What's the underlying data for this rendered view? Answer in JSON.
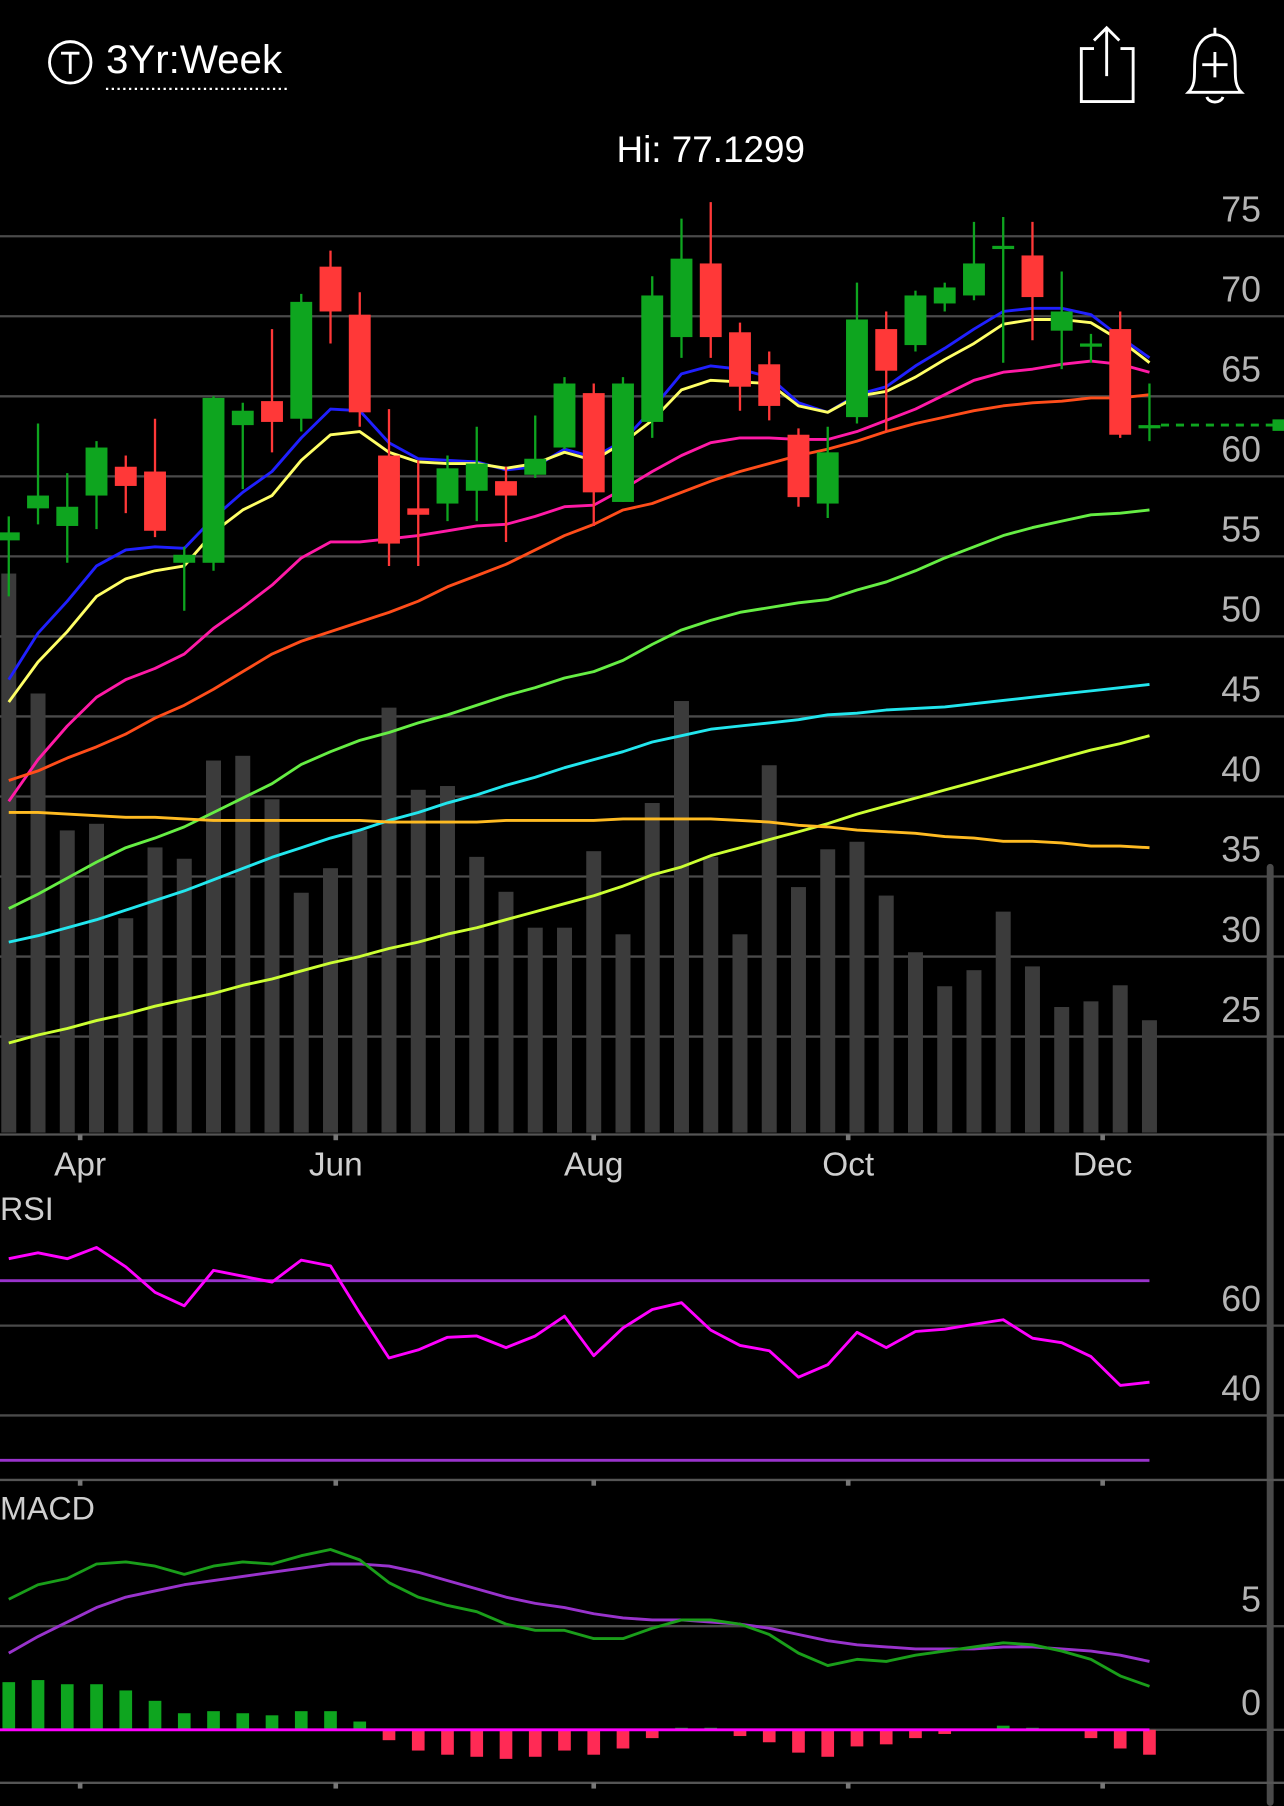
{
  "header": {
    "title": "3Yr:Week"
  },
  "chart_data": [
    {
      "type": "candlestick",
      "annotation": "Hi: 77.1299",
      "x": [
        0,
        1,
        2,
        3,
        4,
        5,
        6,
        7,
        8,
        9,
        10,
        11,
        12,
        13,
        14,
        15,
        16,
        17,
        18,
        19,
        20,
        21,
        22,
        23,
        24,
        25,
        26,
        27,
        28,
        29,
        30,
        31,
        32,
        33,
        34,
        35,
        36,
        37,
        38,
        39
      ],
      "xlim": [
        -0.3,
        43.6
      ],
      "xticks": [
        {
          "value": 2.44,
          "label": "Apr"
        },
        {
          "value": 11.18,
          "label": "Jun"
        },
        {
          "value": 20.0,
          "label": "Aug"
        },
        {
          "value": 28.7,
          "label": "Oct"
        },
        {
          "value": 37.4,
          "label": "Dec"
        }
      ],
      "open": [
        56,
        58,
        56.9,
        58.8,
        60.6,
        60.3,
        54.6,
        54.6,
        63.2,
        64.7,
        63.6,
        73.1,
        70.1,
        61.3,
        58,
        58.3,
        59.1,
        59.7,
        60.1,
        61.8,
        65.2,
        58.4,
        63.4,
        68.7,
        73.3,
        69,
        67,
        62.6,
        58.3,
        63.7,
        69.2,
        68.2,
        70.8,
        71.3,
        74.2,
        73.8,
        69.1,
        68.1,
        69.2,
        63
      ],
      "high": [
        57.5,
        63.3,
        60.2,
        62.2,
        61.3,
        63.6,
        55.6,
        65,
        64.6,
        69.2,
        71.4,
        74.1,
        71.5,
        64.2,
        61,
        61.3,
        63.1,
        60.6,
        63.8,
        66.2,
        65.8,
        66.2,
        72.5,
        76.1,
        77.1299,
        69.6,
        67.8,
        63,
        63.1,
        72.1,
        70.3,
        71.6,
        72.1,
        75.9,
        76.2,
        75.9,
        72.8,
        68.9,
        70.3,
        65.8
      ],
      "low": [
        52.5,
        57,
        54.6,
        56.7,
        57.7,
        56.2,
        51.6,
        54.1,
        59.2,
        61.5,
        62.8,
        68.3,
        63.1,
        54.4,
        54.4,
        57.2,
        57.2,
        55.9,
        59.9,
        61.7,
        56.9,
        58.4,
        62.4,
        67.4,
        67.4,
        64.1,
        63.5,
        58.1,
        57.4,
        63.3,
        62.8,
        67.8,
        70.3,
        71,
        67.1,
        68.5,
        66.7,
        67.1,
        62.4,
        62.2
      ],
      "close": [
        56.5,
        58.8,
        58.1,
        61.8,
        59.4,
        56.6,
        55.1,
        64.9,
        64.1,
        63.4,
        70.9,
        70.3,
        64,
        55.8,
        57.6,
        60.5,
        60.8,
        58.8,
        61.1,
        65.8,
        59,
        65.8,
        71.3,
        73.6,
        68.7,
        65.6,
        64.4,
        58.7,
        61.5,
        69.8,
        66.6,
        71.3,
        71.8,
        73.3,
        74.4,
        71.2,
        70.3,
        68.3,
        62.6,
        63.2
      ],
      "up_color": "#0ea51f",
      "down_color": "#ff3838",
      "volume": [
        59.2,
        46.5,
        32.0,
        32.7,
        22.7,
        30.2,
        29.0,
        39.4,
        39.9,
        35.3,
        25.4,
        28.0,
        32.0,
        45.0,
        36.3,
        36.7,
        29.2,
        25.5,
        21.7,
        21.7,
        29.8,
        21.0,
        34.9,
        45.7,
        29.2,
        21.0,
        38.9,
        26.0,
        30.0,
        30.8,
        25.1,
        19.1,
        15.5,
        17.2,
        23.4,
        17.6,
        13.3,
        13.9,
        15.6,
        11.9
      ],
      "volume_ylim": [
        0,
        100
      ],
      "volume_color": "#3b3b3b",
      "moving_averages": [
        {
          "color": "#2020ff",
          "values": [
            47.3,
            50.2,
            52.2,
            54.4,
            55.4,
            55.6,
            55.5,
            57.4,
            59,
            60.3,
            62.4,
            64.2,
            64.1,
            62.1,
            61.1,
            61,
            60.9,
            60.4,
            60.6,
            61.7,
            61.2,
            62.2,
            64.2,
            66.4,
            66.9,
            66.7,
            66.2,
            64.6,
            64,
            65.1,
            65.6,
            66.9,
            68,
            69.2,
            70.3,
            70.5,
            70.5,
            70.1,
            68.7,
            67.4
          ]
        },
        {
          "color": "#ffff66",
          "values": [
            45.9,
            48.4,
            50.3,
            52.5,
            53.6,
            54.1,
            54.4,
            56.5,
            57.9,
            58.8,
            61,
            62.6,
            62.8,
            61.5,
            60.9,
            60.8,
            60.8,
            60.5,
            60.8,
            61.5,
            61,
            62.1,
            63.5,
            65.4,
            66,
            65.9,
            65.8,
            64.4,
            64,
            65,
            65.3,
            66.2,
            67.3,
            68.3,
            69.5,
            69.8,
            69.8,
            69.6,
            68.5,
            67.1
          ]
        },
        {
          "color": "#ff1aa6",
          "values": [
            39.7,
            42.3,
            44.4,
            46.2,
            47.3,
            48,
            48.9,
            50.5,
            51.8,
            53.2,
            54.9,
            55.9,
            55.9,
            56.1,
            56.3,
            56.6,
            56.9,
            57,
            57.5,
            58.1,
            58.2,
            59.2,
            60.3,
            61.3,
            62.1,
            62.4,
            62.4,
            62.3,
            62.3,
            62.8,
            63.5,
            64.2,
            65.1,
            66,
            66.5,
            66.7,
            67,
            67.2,
            67,
            66.5
          ]
        },
        {
          "color": "#ff4d1a",
          "values": [
            41,
            41.6,
            42.4,
            43.1,
            43.9,
            44.9,
            45.7,
            46.7,
            47.8,
            48.9,
            49.7,
            50.3,
            50.9,
            51.5,
            52.2,
            53.1,
            53.8,
            54.5,
            55.4,
            56.3,
            57,
            57.9,
            58.3,
            59,
            59.7,
            60.3,
            60.8,
            61.3,
            61.7,
            62.2,
            62.8,
            63.3,
            63.7,
            64.1,
            64.4,
            64.6,
            64.7,
            64.9,
            64.9,
            65.1
          ]
        },
        {
          "color": "#66ee44",
          "values": [
            33,
            33.9,
            34.9,
            35.9,
            36.8,
            37.4,
            38.1,
            39,
            39.9,
            40.8,
            42,
            42.8,
            43.5,
            44,
            44.6,
            45.1,
            45.7,
            46.3,
            46.8,
            47.4,
            47.8,
            48.5,
            49.5,
            50.4,
            51,
            51.5,
            51.8,
            52.1,
            52.3,
            52.9,
            53.4,
            54.1,
            54.9,
            55.6,
            56.3,
            56.8,
            57.2,
            57.6,
            57.7,
            57.9
          ]
        },
        {
          "color": "#22e6ee",
          "values": [
            30.9,
            31.3,
            31.8,
            32.3,
            32.9,
            33.5,
            34.1,
            34.8,
            35.5,
            36.2,
            36.8,
            37.4,
            37.9,
            38.5,
            39,
            39.6,
            40.1,
            40.7,
            41.2,
            41.8,
            42.3,
            42.8,
            43.4,
            43.8,
            44.2,
            44.4,
            44.6,
            44.8,
            45.1,
            45.2,
            45.4,
            45.5,
            45.6,
            45.8,
            46,
            46.2,
            46.4,
            46.6,
            46.8,
            47
          ]
        },
        {
          "color": "#ccff33",
          "values": [
            24.6,
            25.1,
            25.5,
            26,
            26.4,
            26.9,
            27.3,
            27.7,
            28.2,
            28.6,
            29.1,
            29.6,
            30,
            30.5,
            30.9,
            31.4,
            31.8,
            32.3,
            32.8,
            33.3,
            33.8,
            34.4,
            35.1,
            35.6,
            36.3,
            36.8,
            37.3,
            37.8,
            38.3,
            38.9,
            39.4,
            39.9,
            40.4,
            40.9,
            41.4,
            41.9,
            42.4,
            42.9,
            43.3,
            43.8
          ]
        },
        {
          "color": "#ffbb22",
          "values": [
            39,
            39,
            38.9,
            38.8,
            38.7,
            38.7,
            38.6,
            38.5,
            38.5,
            38.5,
            38.5,
            38.5,
            38.5,
            38.4,
            38.4,
            38.4,
            38.4,
            38.5,
            38.5,
            38.5,
            38.5,
            38.6,
            38.6,
            38.6,
            38.6,
            38.5,
            38.4,
            38.2,
            38.1,
            37.9,
            37.8,
            37.7,
            37.5,
            37.4,
            37.2,
            37.2,
            37.1,
            36.9,
            36.9,
            36.8
          ]
        }
      ],
      "ylim": [
        19,
        78
      ],
      "yticks": [
        25,
        30,
        35,
        40,
        45,
        50,
        55,
        60,
        65,
        70,
        75
      ],
      "grid": true
    },
    {
      "type": "line",
      "title": "RSI",
      "values": [
        74.9,
        76.2,
        74.9,
        77.4,
        73.1,
        67.4,
        64.4,
        72.3,
        71,
        69.7,
        74.6,
        73.3,
        62.8,
        52.8,
        54.6,
        57.4,
        57.7,
        55.1,
        57.7,
        62.1,
        53.3,
        59.5,
        63.6,
        65.1,
        59,
        55.6,
        54.4,
        48.5,
        51.3,
        58.5,
        55.1,
        58.7,
        59.2,
        60.3,
        61.3,
        57.2,
        56.2,
        53.1,
        46.7,
        47.4
      ],
      "color": "#ff00ff",
      "levels": [
        30,
        70
      ],
      "level_color": "#9933cc",
      "ylim": [
        26,
        90
      ],
      "yticks": [
        40,
        60
      ],
      "grid": true
    },
    {
      "type": "macd",
      "title": "MACD",
      "macd": {
        "color": "#1a9e1a",
        "values": [
          6.3,
          7,
          7.3,
          8,
          8.1,
          7.9,
          7.5,
          7.9,
          8.1,
          8,
          8.4,
          8.7,
          8.2,
          7.1,
          6.4,
          6,
          5.7,
          5.1,
          4.8,
          4.8,
          4.4,
          4.4,
          4.9,
          5.3,
          5.3,
          5.1,
          4.6,
          3.7,
          3.1,
          3.4,
          3.3,
          3.6,
          3.8,
          4,
          4.2,
          4.1,
          3.8,
          3.4,
          2.6,
          2.1
        ]
      },
      "signal": {
        "color": "#9933cc",
        "values": [
          3.7,
          4.5,
          5.2,
          5.9,
          6.4,
          6.7,
          7,
          7.2,
          7.4,
          7.6,
          7.8,
          8,
          8,
          7.9,
          7.6,
          7.2,
          6.8,
          6.4,
          6.1,
          5.9,
          5.6,
          5.4,
          5.3,
          5.3,
          5.2,
          5.1,
          4.9,
          4.6,
          4.3,
          4.1,
          4,
          3.9,
          3.9,
          3.9,
          4,
          4,
          3.9,
          3.8,
          3.6,
          3.3
        ]
      },
      "histogram": [
        2.3,
        2.4,
        2.2,
        2.2,
        1.9,
        1.4,
        0.8,
        0.9,
        0.8,
        0.7,
        0.9,
        0.9,
        0.4,
        -0.5,
        -1,
        -1.2,
        -1.3,
        -1.4,
        -1.3,
        -1,
        -1.2,
        -0.9,
        -0.4,
        0.1,
        0.1,
        -0.3,
        -0.6,
        -1.1,
        -1.3,
        -0.8,
        -0.7,
        -0.4,
        -0.2,
        0,
        0.2,
        0.1,
        0,
        -0.4,
        -0.9,
        -1.2
      ],
      "positive_color": "#0ea51f",
      "negative_color": "#ff2a55",
      "zero_color": "#ff00ff",
      "ylim": [
        -3,
        12
      ],
      "yticks": [
        0,
        5
      ],
      "grid": true
    }
  ]
}
